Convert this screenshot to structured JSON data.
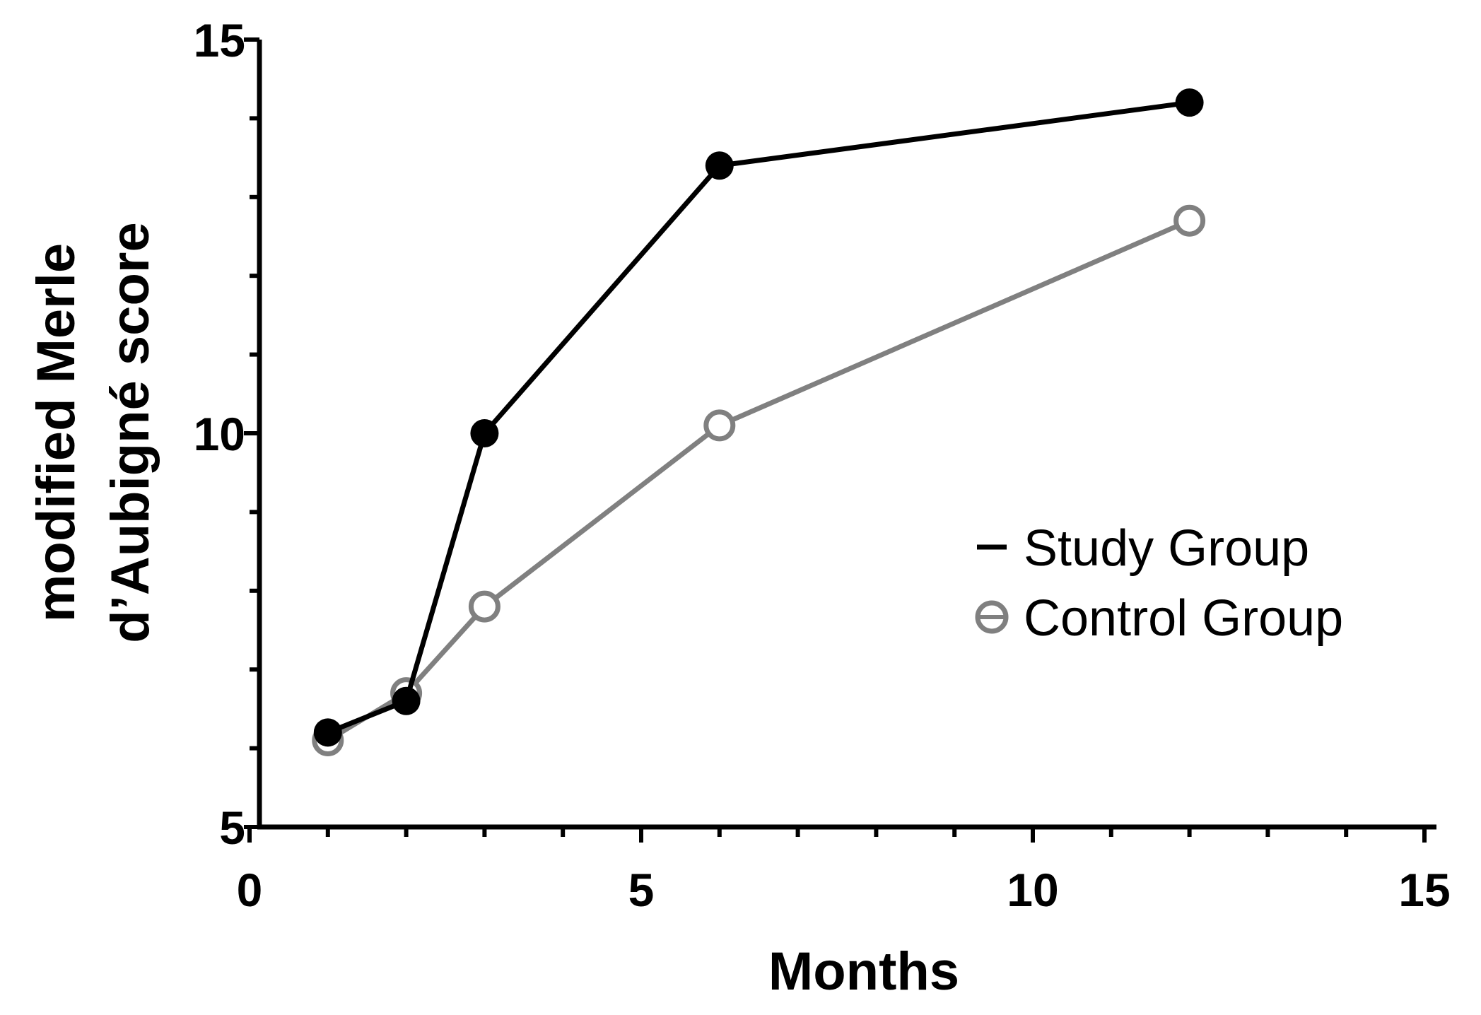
{
  "chart_data": {
    "type": "line",
    "title": "",
    "xlabel": "Months",
    "ylabel_lines": [
      "modified Merle",
      "d’Aubigné score"
    ],
    "xlim": [
      0,
      15
    ],
    "ylim": [
      5,
      15
    ],
    "x_major_ticks": [
      0,
      5,
      10,
      15
    ],
    "x_tick_labels": [
      "0",
      "5",
      "10",
      "15"
    ],
    "x_minor_step": 1,
    "y_major_ticks": [
      5,
      10,
      15
    ],
    "y_tick_labels": [
      "5",
      "10",
      "15"
    ],
    "y_minor_step": 1,
    "legend_position": "right",
    "series": [
      {
        "name": "Study Group",
        "color": "#000000",
        "marker": "filled-circle",
        "x": [
          1,
          2,
          3,
          6,
          12
        ],
        "y": [
          6.2,
          6.6,
          10.0,
          13.4,
          14.2
        ]
      },
      {
        "name": "Control Group",
        "color": "#808080",
        "marker": "open-circle",
        "x": [
          1,
          2,
          3,
          6,
          12
        ],
        "y": [
          6.1,
          6.7,
          7.8,
          10.1,
          12.7
        ]
      }
    ]
  }
}
